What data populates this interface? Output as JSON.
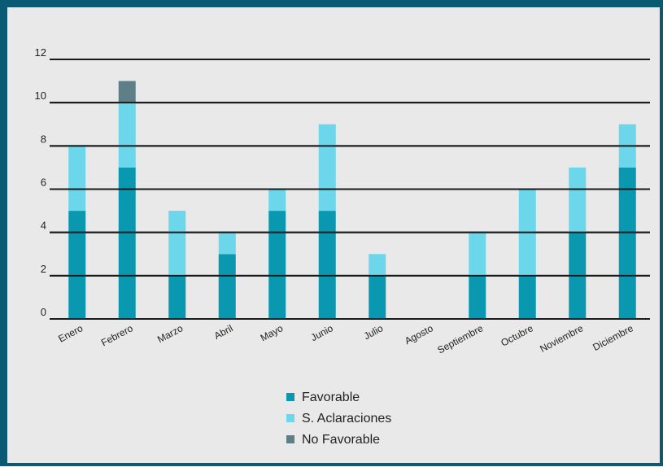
{
  "chart_data": {
    "type": "bar",
    "stacked": true,
    "categories": [
      "Enero",
      "Febrero",
      "Marzo",
      "Abril",
      "Mayo",
      "Junio",
      "Julio",
      "Agosto",
      "Septiembre",
      "Octubre",
      "Noviembre",
      "Diciembre"
    ],
    "series": [
      {
        "name": "Favorable",
        "color": "#0a98b0",
        "values": [
          5,
          7,
          2,
          3,
          5,
          5,
          2,
          0,
          2,
          2,
          4,
          7
        ]
      },
      {
        "name": "S. Aclaraciones",
        "color": "#6cd6ea",
        "values": [
          3,
          3,
          3,
          1,
          1,
          4,
          1,
          0,
          2,
          4,
          3,
          2
        ]
      },
      {
        "name": "No Favorable",
        "color": "#5f7f88",
        "values": [
          0,
          1,
          0,
          0,
          0,
          0,
          0,
          0,
          0,
          0,
          0,
          0
        ]
      }
    ],
    "yticks": [
      0,
      2,
      4,
      6,
      8,
      10,
      12
    ],
    "ylim": [
      0,
      12
    ],
    "grid": true,
    "legend_position": "bottom-center"
  }
}
